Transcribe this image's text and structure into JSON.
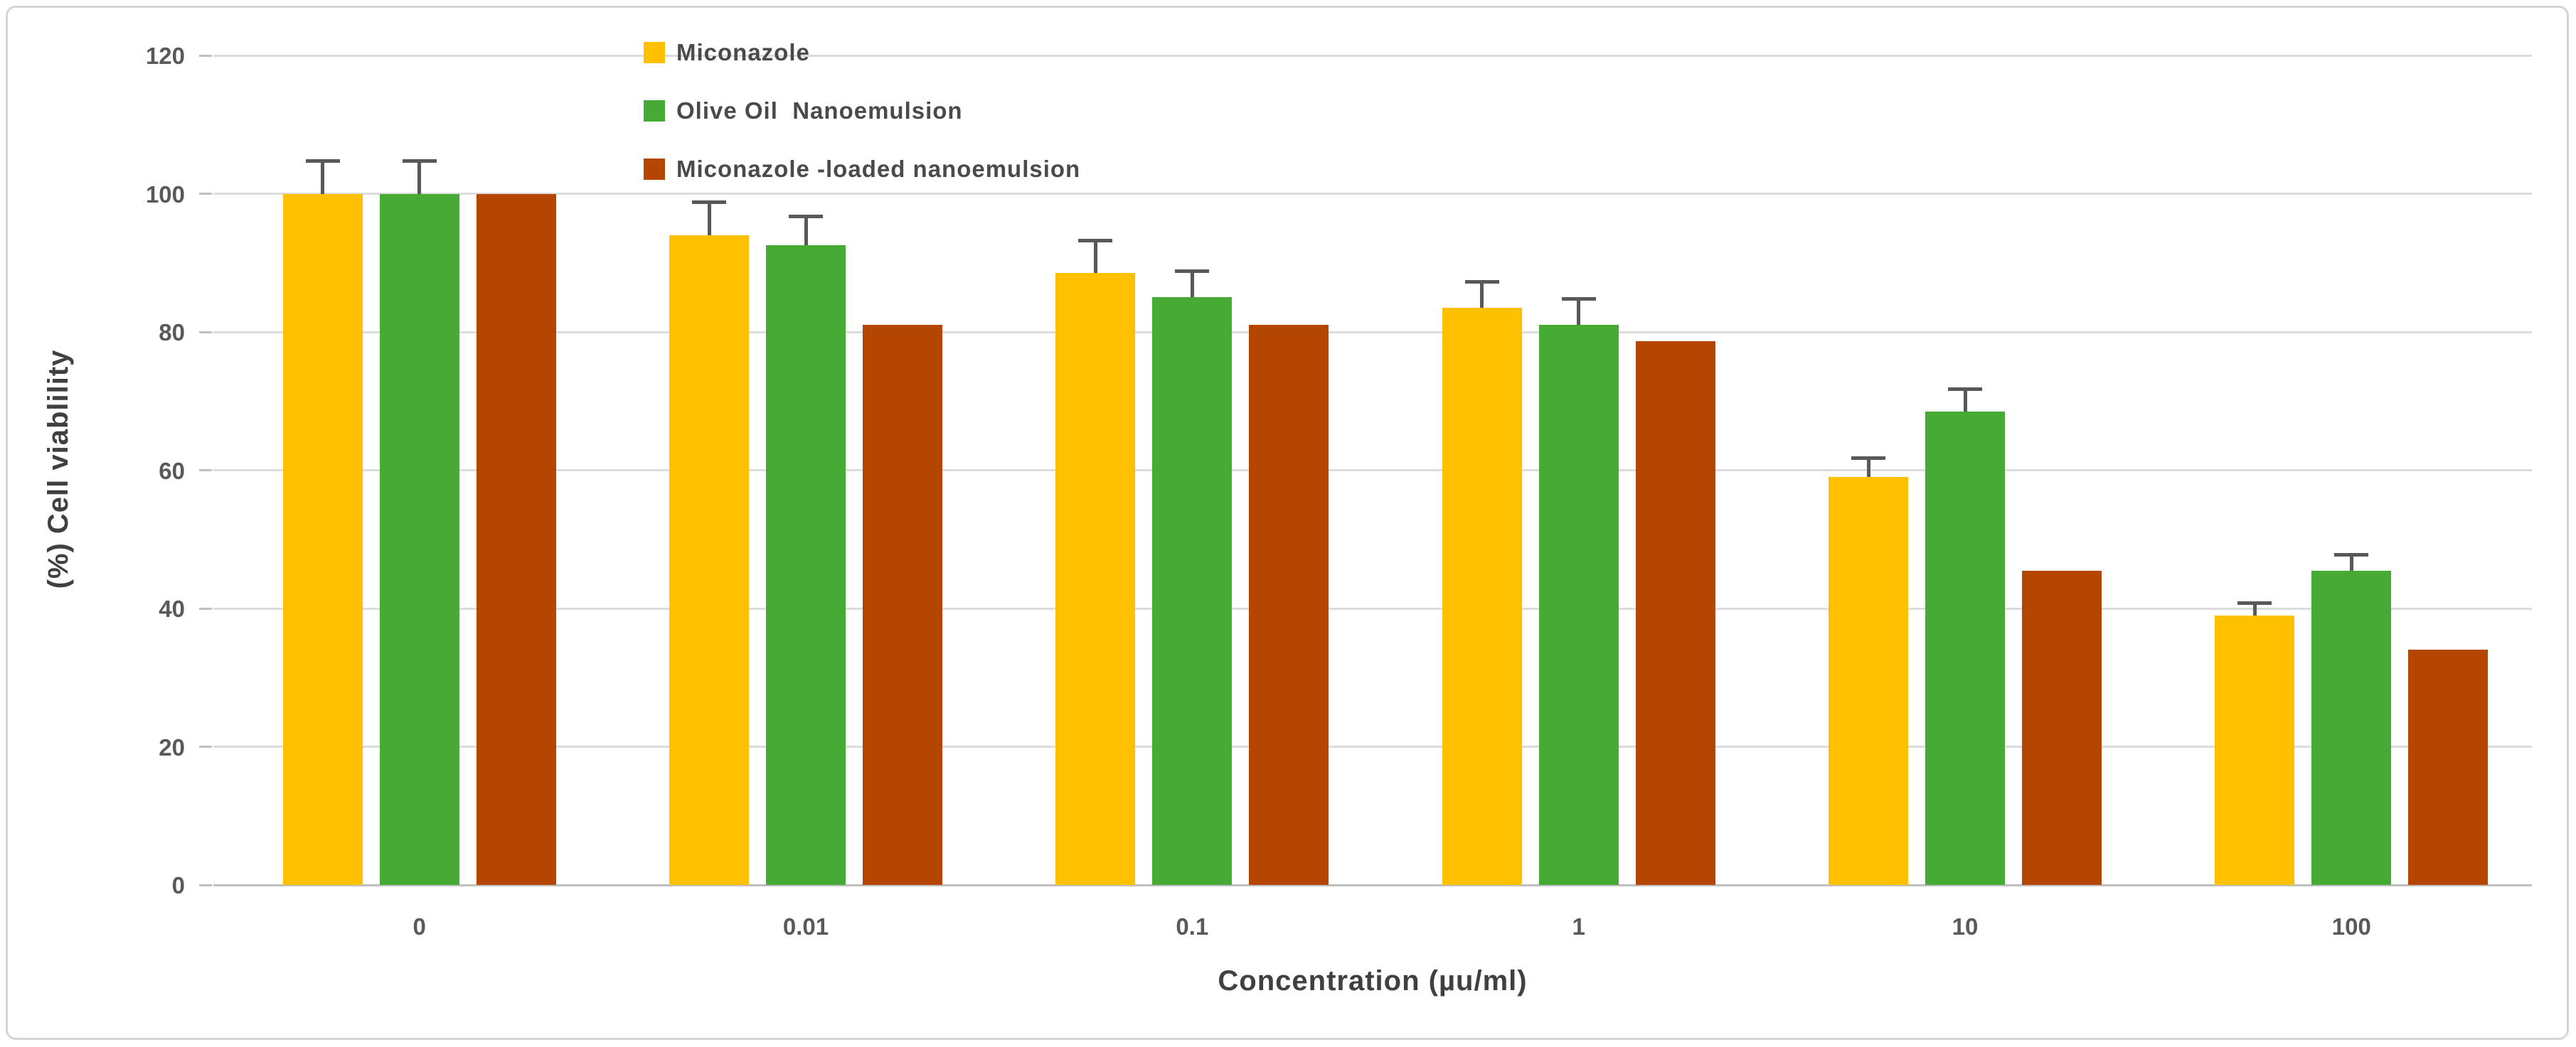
{
  "chart_data": {
    "type": "bar",
    "title": "",
    "xlabel": "Concentration (µu/ml)",
    "ylabel": "(%) Cell viablility",
    "categories": [
      "0",
      "0.01",
      "0.1",
      "1",
      "10",
      "100"
    ],
    "series": [
      {
        "name": "Miconazole",
        "color": "#FFC000",
        "values": [
          100,
          94,
          88.5,
          83.5,
          59,
          39
        ],
        "errors": [
          5,
          5,
          5,
          4,
          3,
          2
        ]
      },
      {
        "name": "Olive Oil  Nanoemulsion",
        "color": "#45AB34",
        "values": [
          100,
          92.5,
          85,
          81,
          68.5,
          45.5
        ],
        "errors": [
          5,
          4.5,
          4,
          4,
          3.5,
          2.5
        ]
      },
      {
        "name": "Miconazole -loaded nanoemulsion",
        "color": "#B44602",
        "values": [
          100,
          81,
          81,
          78.7,
          45.5,
          34
        ],
        "errors": [
          0,
          0,
          0,
          0,
          0,
          0
        ]
      }
    ],
    "ylim": [
      0,
      120
    ],
    "ytick_step": 20,
    "yticks": [
      0,
      20,
      40,
      60,
      80,
      100,
      120
    ],
    "grid": true,
    "legend_position": "top-center",
    "error_bar_color": "#595959",
    "gridline_color": "#dcdcdc",
    "axis_text_color": "#595959",
    "title_text_color": "#404040"
  }
}
